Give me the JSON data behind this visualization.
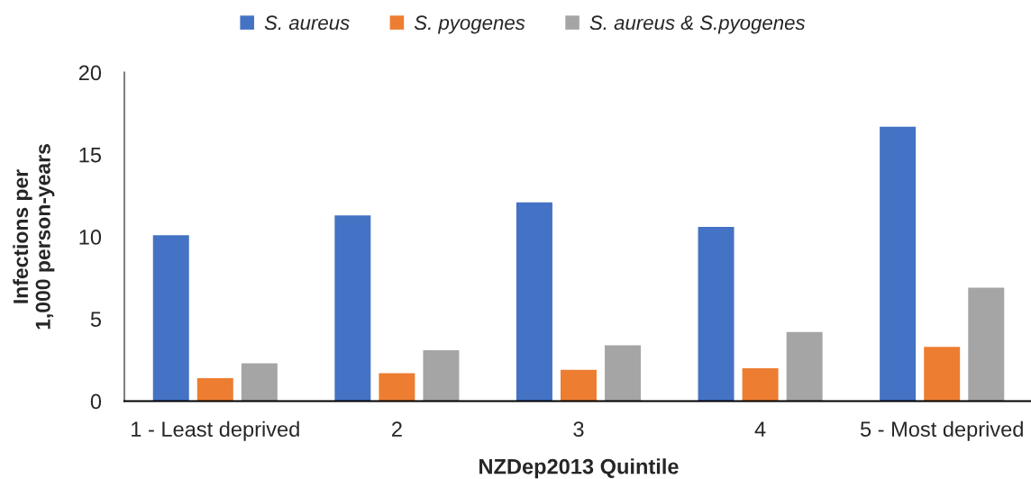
{
  "chart_data": {
    "type": "bar",
    "categories": [
      "1 - Least deprived",
      "2",
      "3",
      "4",
      "5 - Most deprived"
    ],
    "series": [
      {
        "name": "S. aureus",
        "color": "#4472c4",
        "values": [
          10.1,
          11.3,
          12.1,
          10.6,
          16.7
        ]
      },
      {
        "name": "S. pyogenes",
        "color": "#ed7d31",
        "values": [
          1.4,
          1.7,
          1.9,
          2.0,
          3.3
        ]
      },
      {
        "name": "S. aureus & S.pyogenes",
        "color": "#a5a5a5",
        "values": [
          2.3,
          3.1,
          3.4,
          4.2,
          6.9
        ]
      }
    ],
    "xlabel": "NZDep2013 Quintile",
    "ylabel": "Infections per\n1,000 person-years",
    "ylim": [
      0,
      20
    ],
    "yticks": [
      0,
      5,
      10,
      15,
      20
    ],
    "grid": false,
    "legend": "top"
  }
}
